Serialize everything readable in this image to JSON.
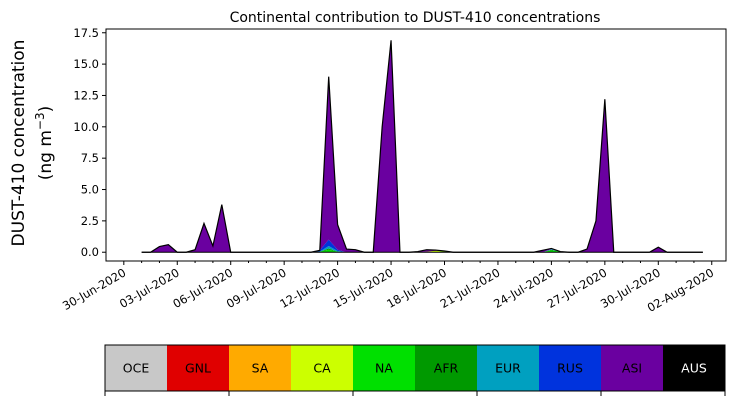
{
  "chart_data": {
    "type": "area",
    "title": "Continental contribution to DUST-410 concentrations",
    "ylabel_line1": "DUST-410 concentration",
    "ylabel_line2": "(ng m",
    "ylabel_sup": "−3",
    "ylabel_close": ")",
    "ylim": [
      -0.7,
      17.8
    ],
    "yticks": [
      0.0,
      2.5,
      5.0,
      7.5,
      10.0,
      12.5,
      15.0,
      17.5
    ],
    "ytick_labels": [
      "0.0",
      "2.5",
      "5.0",
      "7.5",
      "10.0",
      "12.5",
      "15.0",
      "17.5"
    ],
    "xlim_days": [
      -1.0,
      33.8
    ],
    "xtick_labels": [
      "30-Jun-2020",
      "03-Jul-2020",
      "06-Jul-2020",
      "09-Jul-2020",
      "12-Jul-2020",
      "15-Jul-2020",
      "18-Jul-2020",
      "21-Jul-2020",
      "24-Jul-2020",
      "27-Jul-2020",
      "30-Jul-2020",
      "02-Aug-2020"
    ],
    "xtick_days": [
      0,
      3,
      6,
      9,
      12,
      15,
      18,
      21,
      24,
      27,
      30,
      33
    ],
    "x_days": [
      1,
      1.5,
      2,
      2.5,
      3,
      3.5,
      4,
      4.5,
      5,
      5.5,
      6,
      6.5,
      7,
      7.5,
      8,
      8.5,
      9,
      9.5,
      10,
      10.5,
      11,
      11.5,
      12,
      12.5,
      13,
      13.5,
      14,
      14.5,
      15,
      15.5,
      16,
      16.5,
      17,
      17.5,
      18,
      18.5,
      19,
      19.5,
      20,
      20.5,
      21,
      21.5,
      22,
      22.5,
      23,
      23.5,
      24,
      24.5,
      25,
      25.5,
      26,
      26.5,
      27,
      27.5,
      28,
      28.5,
      29,
      29.5,
      30,
      30.5,
      31,
      31.5,
      32,
      32.5
    ],
    "series": [
      {
        "name": "OCE",
        "color": "#c8c8c8",
        "values": [
          0,
          0,
          0,
          0,
          0,
          0,
          0,
          0,
          0,
          0,
          0,
          0,
          0,
          0,
          0,
          0,
          0,
          0,
          0,
          0,
          0,
          0,
          0,
          0,
          0,
          0,
          0,
          0,
          0,
          0,
          0,
          0,
          0,
          0,
          0,
          0,
          0,
          0,
          0,
          0,
          0,
          0,
          0,
          0,
          0,
          0,
          0,
          0,
          0,
          0,
          0,
          0,
          0,
          0,
          0,
          0,
          0,
          0,
          0,
          0,
          0,
          0,
          0,
          0
        ]
      },
      {
        "name": "GNL",
        "color": "#e00000",
        "values": [
          0,
          0,
          0,
          0,
          0,
          0,
          0,
          0,
          0,
          0,
          0,
          0,
          0,
          0,
          0,
          0,
          0,
          0,
          0,
          0,
          0,
          0,
          0,
          0,
          0,
          0,
          0,
          0,
          0,
          0,
          0,
          0,
          0,
          0,
          0,
          0,
          0,
          0,
          0,
          0,
          0,
          0,
          0,
          0,
          0,
          0,
          0,
          0,
          0,
          0,
          0,
          0,
          0,
          0,
          0,
          0,
          0,
          0,
          0,
          0,
          0,
          0,
          0,
          0
        ]
      },
      {
        "name": "SA",
        "color": "#ffaa00",
        "values": [
          0,
          0,
          0,
          0,
          0,
          0,
          0,
          0,
          0,
          0,
          0,
          0,
          0,
          0,
          0,
          0,
          0,
          0,
          0,
          0,
          0,
          0,
          0,
          0,
          0,
          0,
          0,
          0,
          0,
          0,
          0,
          0,
          0,
          0,
          0,
          0,
          0,
          0,
          0,
          0,
          0,
          0,
          0,
          0,
          0,
          0,
          0,
          0,
          0,
          0,
          0,
          0,
          0,
          0,
          0,
          0,
          0,
          0,
          0,
          0,
          0,
          0,
          0,
          0
        ]
      },
      {
        "name": "CA",
        "color": "#ccff00",
        "values": [
          0,
          0,
          0,
          0,
          0,
          0,
          0,
          0,
          0,
          0,
          0,
          0,
          0,
          0,
          0,
          0,
          0,
          0,
          0,
          0,
          0,
          0,
          0,
          0,
          0,
          0,
          0,
          0,
          0,
          0,
          0,
          0,
          0.05,
          0.12,
          0.05,
          0,
          0,
          0,
          0,
          0,
          0,
          0,
          0,
          0,
          0,
          0,
          0,
          0,
          0,
          0,
          0,
          0,
          0,
          0,
          0,
          0,
          0,
          0,
          0,
          0,
          0,
          0,
          0,
          0
        ]
      },
      {
        "name": "NA",
        "color": "#00e000",
        "values": [
          0,
          0,
          0,
          0,
          0,
          0,
          0,
          0,
          0,
          0,
          0,
          0,
          0,
          0,
          0,
          0,
          0,
          0,
          0,
          0,
          0.05,
          0.2,
          0.05,
          0,
          0,
          0,
          0,
          0,
          0,
          0,
          0,
          0,
          0,
          0,
          0.05,
          0,
          0,
          0,
          0,
          0,
          0,
          0,
          0,
          0,
          0,
          0,
          0.15,
          0.05,
          0,
          0,
          0,
          0,
          0,
          0,
          0,
          0,
          0,
          0,
          0,
          0,
          0,
          0,
          0,
          0
        ]
      },
      {
        "name": "AFR",
        "color": "#009900",
        "values": [
          0,
          0,
          0,
          0,
          0,
          0,
          0,
          0,
          0,
          0,
          0,
          0,
          0,
          0,
          0,
          0,
          0,
          0,
          0,
          0,
          0,
          0.1,
          0,
          0,
          0,
          0,
          0,
          0,
          0,
          0,
          0,
          0,
          0,
          0,
          0,
          0,
          0,
          0,
          0,
          0,
          0,
          0,
          0,
          0,
          0,
          0,
          0.05,
          0,
          0,
          0,
          0,
          0,
          0,
          0,
          0,
          0,
          0,
          0,
          0,
          0,
          0,
          0,
          0,
          0
        ]
      },
      {
        "name": "EUR",
        "color": "#00a0c0",
        "values": [
          0,
          0,
          0,
          0,
          0,
          0,
          0,
          0,
          0,
          0,
          0,
          0,
          0,
          0,
          0,
          0,
          0,
          0,
          0,
          0,
          0,
          0.2,
          0.05,
          0,
          0,
          0,
          0,
          0,
          0,
          0,
          0,
          0,
          0,
          0,
          0,
          0,
          0,
          0,
          0,
          0,
          0,
          0,
          0,
          0,
          0,
          0,
          0.05,
          0,
          0,
          0,
          0,
          0,
          0,
          0,
          0,
          0,
          0,
          0,
          0,
          0,
          0,
          0,
          0,
          0
        ]
      },
      {
        "name": "RUS",
        "color": "#0033dd",
        "values": [
          0,
          0,
          0,
          0,
          0,
          0,
          0,
          0,
          0,
          0,
          0,
          0,
          0,
          0,
          0,
          0,
          0,
          0,
          0,
          0,
          0.1,
          0.5,
          0.1,
          0,
          0,
          0,
          0,
          0,
          0,
          0,
          0,
          0,
          0,
          0,
          0,
          0,
          0,
          0,
          0,
          0,
          0,
          0,
          0,
          0,
          0,
          0,
          0,
          0,
          0,
          0,
          0,
          0,
          0,
          0,
          0,
          0,
          0,
          0,
          0,
          0,
          0,
          0,
          0,
          0
        ]
      },
      {
        "name": "ASI",
        "color": "#6a00a0",
        "values": [
          0,
          0,
          0.45,
          0.6,
          0,
          0,
          0.2,
          2.3,
          0.5,
          3.8,
          0,
          0,
          0,
          0,
          0,
          0,
          0,
          0,
          0,
          0,
          0,
          13.0,
          2.0,
          0.25,
          0.2,
          0,
          0,
          10.0,
          16.9,
          0,
          0,
          0.05,
          0.15,
          0.05,
          0,
          0,
          0,
          0,
          0,
          0,
          0,
          0,
          0,
          0,
          0,
          0.15,
          0.05,
          0,
          0,
          0,
          0.25,
          2.5,
          12.2,
          0,
          0,
          0,
          0,
          0,
          0.4,
          0,
          0,
          0,
          0,
          0
        ]
      },
      {
        "name": "AUS",
        "color": "#000000",
        "values": [
          0,
          0,
          0,
          0,
          0,
          0,
          0,
          0,
          0,
          0,
          0,
          0,
          0,
          0,
          0,
          0,
          0,
          0,
          0,
          0,
          0,
          0,
          0,
          0,
          0,
          0,
          0,
          0,
          0,
          0,
          0,
          0,
          0,
          0,
          0,
          0,
          0,
          0,
          0,
          0,
          0,
          0,
          0,
          0,
          0,
          0,
          0,
          0,
          0,
          0,
          0,
          0,
          0,
          0,
          0,
          0,
          0,
          0,
          0,
          0,
          0,
          0,
          0,
          0
        ]
      }
    ],
    "legend": [
      {
        "label": "OCE",
        "color": "#c8c8c8",
        "text_color": "#000000"
      },
      {
        "label": "GNL",
        "color": "#e00000",
        "text_color": "#000000"
      },
      {
        "label": "SA",
        "color": "#ffaa00",
        "text_color": "#000000"
      },
      {
        "label": "CA",
        "color": "#ccff00",
        "text_color": "#000000"
      },
      {
        "label": "NA",
        "color": "#00e000",
        "text_color": "#000000"
      },
      {
        "label": "AFR",
        "color": "#009900",
        "text_color": "#000000"
      },
      {
        "label": "EUR",
        "color": "#00a0c0",
        "text_color": "#000000"
      },
      {
        "label": "RUS",
        "color": "#0033dd",
        "text_color": "#000000"
      },
      {
        "label": "ASI",
        "color": "#6a00a0",
        "text_color": "#000000"
      },
      {
        "label": "AUS",
        "color": "#000000",
        "text_color": "#ffffff"
      }
    ],
    "legend_placement": "bottom colorbar",
    "grid": false
  }
}
